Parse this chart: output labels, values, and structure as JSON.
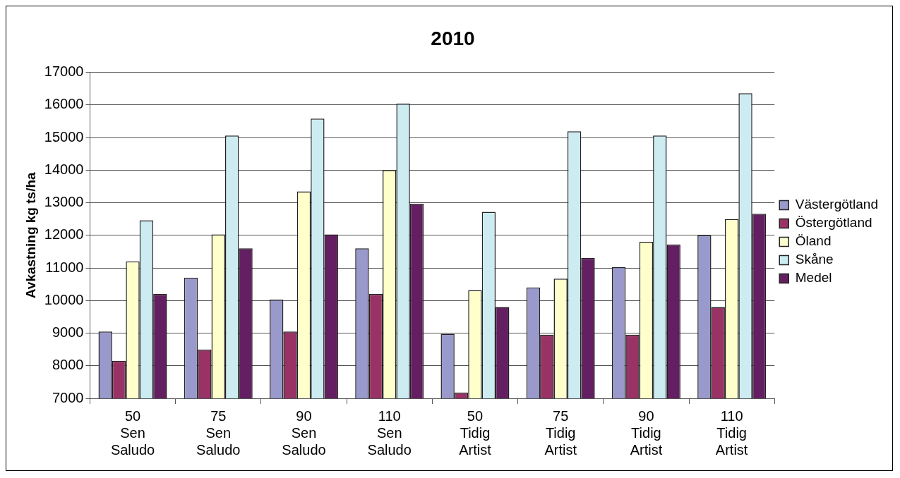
{
  "chart_data": {
    "type": "bar",
    "title": "2010",
    "ylabel": "Avkastning kg ts/ha",
    "categories": [
      "50\nSen\nSaludo",
      "75\nSen\nSaludo",
      "90\nSen\nSaludo",
      "110\nSen\nSaludo",
      "50\nTidig\nArtist",
      "75\nTidig\nArtist",
      "90\nTidig\nArtist",
      "110\nTidig\nArtist"
    ],
    "series": [
      {
        "name": "Västergötland",
        "color": "#9999cc",
        "values": [
          9050,
          10700,
          10030,
          11600,
          8980,
          10400,
          11030,
          12000
        ]
      },
      {
        "name": "Östergötland",
        "color": "#993366",
        "values": [
          8150,
          8500,
          9050,
          10200,
          7180,
          8950,
          8950,
          9800
        ]
      },
      {
        "name": "Öland",
        "color": "#ffffcc",
        "values": [
          11200,
          12030,
          13350,
          14000,
          10320,
          10670,
          11800,
          12500
        ]
      },
      {
        "name": "Skåne",
        "color": "#ccecf2",
        "values": [
          12460,
          15060,
          15580,
          16040,
          12720,
          15190,
          15060,
          16360
        ]
      },
      {
        "name": "Medel",
        "color": "#631f61",
        "values": [
          10200,
          11600,
          12030,
          12970,
          9800,
          11310,
          11720,
          12660
        ]
      }
    ],
    "ylim": [
      7000,
      17000
    ],
    "yticks": [
      7000,
      8000,
      9000,
      10000,
      11000,
      12000,
      13000,
      14000,
      15000,
      16000,
      17000
    ],
    "grid": "y",
    "legend": "right"
  }
}
